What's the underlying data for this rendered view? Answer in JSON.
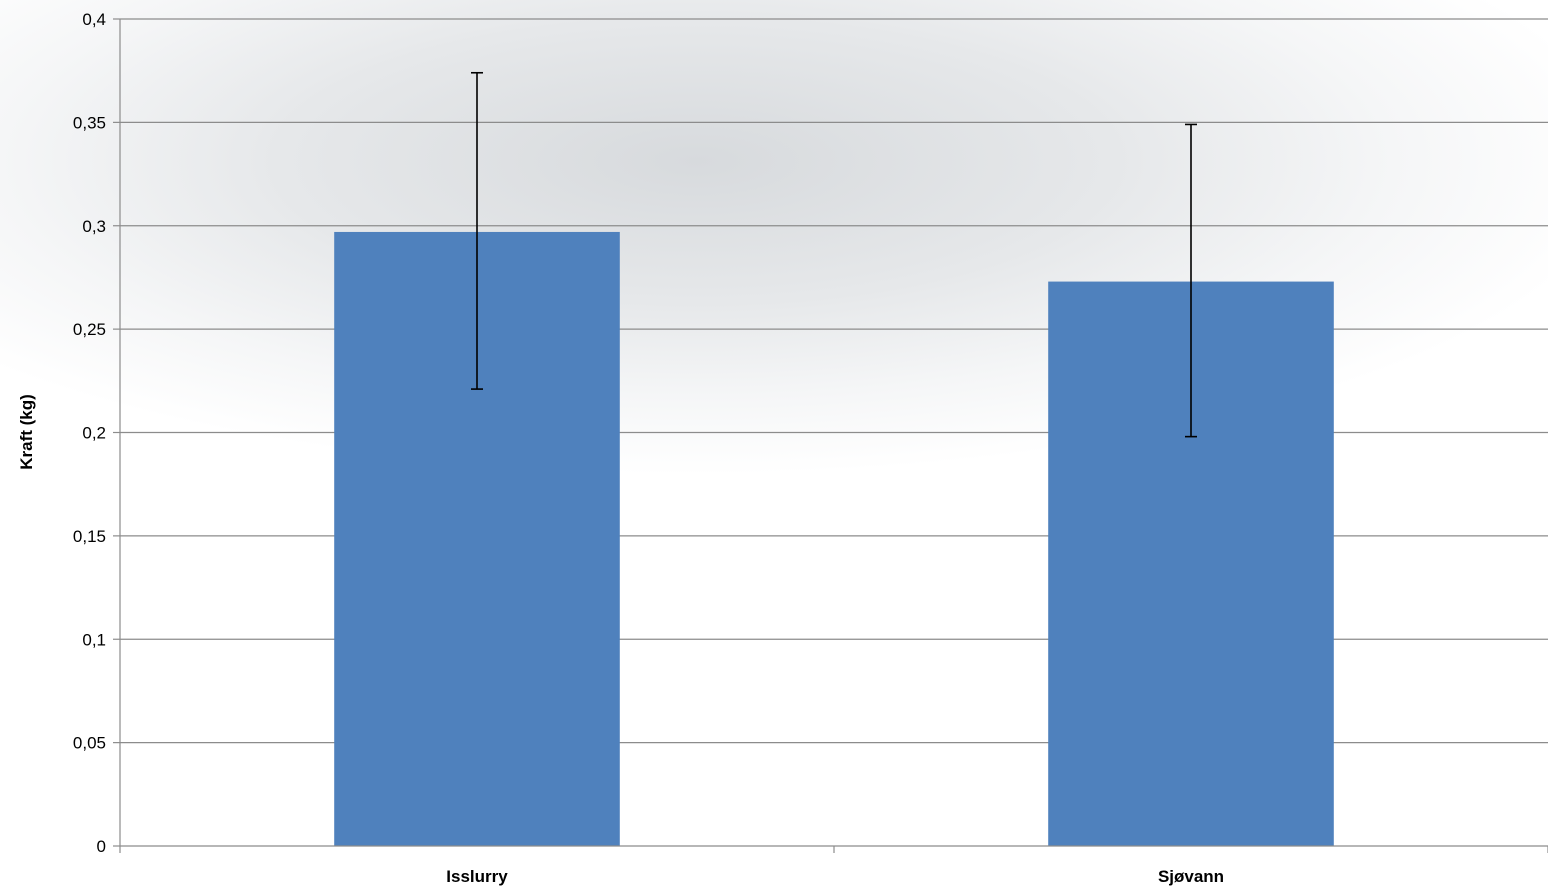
{
  "chart_data": {
    "type": "bar",
    "categories": [
      "Isslurry",
      "Sjøvann"
    ],
    "values": [
      0.297,
      0.273
    ],
    "error_bars": [
      {
        "lower": 0.221,
        "upper": 0.374
      },
      {
        "lower": 0.198,
        "upper": 0.349
      }
    ],
    "title": "",
    "xlabel": "",
    "ylabel": "Kraft (kg)",
    "ylim": [
      0,
      0.4
    ],
    "yticks": [
      0,
      0.05,
      0.1,
      0.15,
      0.2,
      0.25,
      0.3,
      0.35,
      0.4
    ],
    "ytick_labels": [
      "0",
      "0,05",
      "0,1",
      "0,15",
      "0,2",
      "0,25",
      "0,3",
      "0,35",
      "0,4"
    ],
    "grid": true,
    "legend": "none",
    "colors": {
      "bar": "#4f81bd",
      "grid": "#8c8c8c",
      "error_bar": "#000000"
    }
  }
}
